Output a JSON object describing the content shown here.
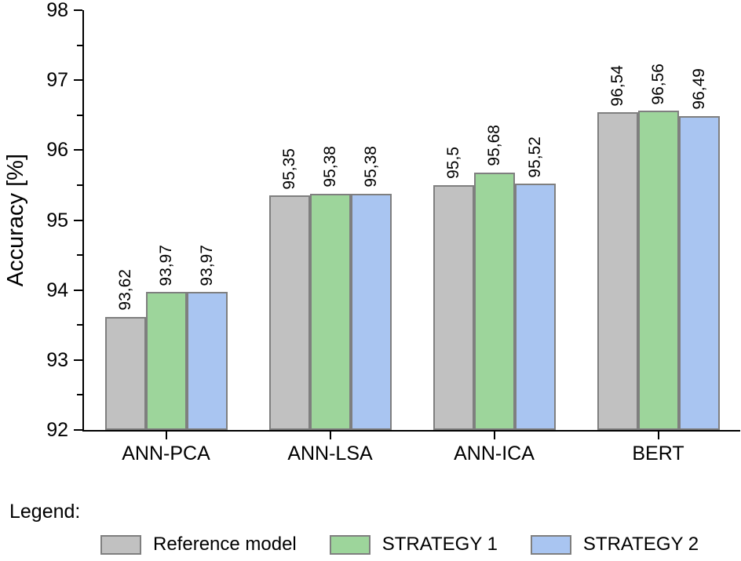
{
  "chart_data": {
    "type": "bar",
    "title": "",
    "ylabel": "Accuracy [%]",
    "xlabel": "",
    "ylim": [
      92,
      98
    ],
    "ytick_major": 1,
    "ytick_minor": 0.5,
    "grid": "off",
    "legend_position": "bottom",
    "categories": [
      "ANN-PCA",
      "ANN-LSA",
      "ANN-ICA",
      "BERT"
    ],
    "series": [
      {
        "name": "Reference model",
        "color": "#c1c1c1",
        "values": [
          93.62,
          95.35,
          95.5,
          96.54
        ],
        "labels": [
          "93,62",
          "95,35",
          "95,5",
          "96,54"
        ]
      },
      {
        "name": "STRATEGY 1",
        "color": "#9dd59b",
        "values": [
          93.97,
          95.38,
          95.68,
          96.56
        ],
        "labels": [
          "93,97",
          "95,38",
          "95,68",
          "96,56"
        ]
      },
      {
        "name": "STRATEGY 2",
        "color": "#a9c5f1",
        "values": [
          93.97,
          95.38,
          95.52,
          96.49
        ],
        "labels": [
          "93,97",
          "95,38",
          "95,52",
          "96,49"
        ]
      }
    ],
    "bar_border_color": "#7f7f7f",
    "axis_color": "#000000"
  },
  "legend": {
    "title": "Legend:"
  }
}
